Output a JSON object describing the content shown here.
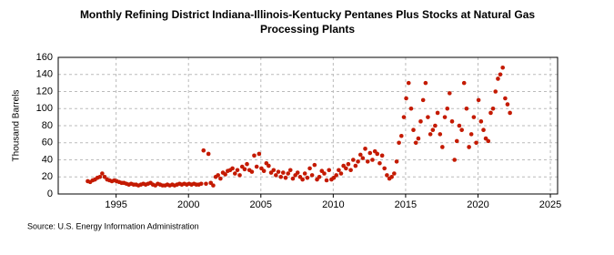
{
  "chart_data": {
    "type": "scatter",
    "title": [
      "Monthly Refining District Indiana-Illinois-Kentucky Pentanes Plus Stocks at Natural Gas",
      "Processing Plants"
    ],
    "y_label": "Thousand Barrels",
    "source": "Source: U.S. Energy Information Administration",
    "xlim": [
      1991,
      2025.5
    ],
    "xticks": [
      1995,
      2000,
      2005,
      2010,
      2015,
      2020,
      2025
    ],
    "ylim": [
      0,
      160
    ],
    "yticks": [
      0,
      20,
      40,
      60,
      80,
      100,
      120,
      140,
      160
    ],
    "grid": true,
    "series": [
      {
        "color": "#c41a00",
        "x": [
          1993.04,
          1993.21,
          1993.38,
          1993.54,
          1993.71,
          1993.88,
          1994.04,
          1994.21,
          1994.38,
          1994.54,
          1994.71,
          1994.88,
          1995.04,
          1995.21,
          1995.38,
          1995.54,
          1995.71,
          1995.88,
          1996.04,
          1996.21,
          1996.38,
          1996.54,
          1996.71,
          1996.88,
          1997.04,
          1997.21,
          1997.38,
          1997.54,
          1997.71,
          1997.88,
          1998.04,
          1998.21,
          1998.38,
          1998.54,
          1998.71,
          1998.88,
          1999.04,
          1999.21,
          1999.38,
          1999.54,
          1999.71,
          1999.88,
          2000.04,
          2000.21,
          2000.38,
          2000.54,
          2000.71,
          2000.88,
          2001.04,
          2001.21,
          2001.38,
          2001.54,
          2001.71,
          2001.88,
          2002.04,
          2002.21,
          2002.38,
          2002.54,
          2002.71,
          2002.88,
          2003.04,
          2003.21,
          2003.38,
          2003.54,
          2003.71,
          2003.88,
          2004.04,
          2004.21,
          2004.38,
          2004.54,
          2004.71,
          2004.88,
          2005.04,
          2005.21,
          2005.38,
          2005.54,
          2005.71,
          2005.88,
          2006.04,
          2006.21,
          2006.38,
          2006.54,
          2006.71,
          2006.88,
          2007.04,
          2007.21,
          2007.38,
          2007.54,
          2007.71,
          2007.88,
          2008.04,
          2008.21,
          2008.38,
          2008.54,
          2008.71,
          2008.88,
          2009.04,
          2009.21,
          2009.38,
          2009.54,
          2009.71,
          2009.88,
          2010.04,
          2010.21,
          2010.38,
          2010.54,
          2010.71,
          2010.88,
          2011.04,
          2011.21,
          2011.38,
          2011.54,
          2011.71,
          2011.88,
          2012.04,
          2012.21,
          2012.38,
          2012.54,
          2012.71,
          2012.88,
          2013.04,
          2013.21,
          2013.38,
          2013.54,
          2013.71,
          2013.88,
          2014.04,
          2014.21,
          2014.38,
          2014.54,
          2014.71,
          2014.88,
          2015.04,
          2015.21,
          2015.38,
          2015.54,
          2015.71,
          2015.88,
          2016.04,
          2016.21,
          2016.38,
          2016.54,
          2016.71,
          2016.88,
          2017.04,
          2017.21,
          2017.38,
          2017.54,
          2017.71,
          2017.88,
          2018.04,
          2018.21,
          2018.38,
          2018.54,
          2018.71,
          2018.88,
          2019.04,
          2019.21,
          2019.38,
          2019.54,
          2019.71,
          2019.88,
          2020.04,
          2020.21,
          2020.38,
          2020.54,
          2020.71,
          2020.88,
          2021.04,
          2021.21,
          2021.38,
          2021.54,
          2021.71,
          2021.88,
          2022.04,
          2022.21
        ],
        "values": [
          15,
          14,
          16,
          17,
          19,
          20,
          24,
          20,
          17,
          16,
          15,
          16,
          15,
          14,
          13,
          13,
          12,
          11,
          12,
          11,
          11,
          10,
          11,
          12,
          11,
          12,
          13,
          11,
          10,
          12,
          11,
          10,
          10,
          11,
          10,
          11,
          10,
          11,
          12,
          11,
          12,
          11,
          12,
          11,
          12,
          11,
          11,
          12,
          51,
          12,
          47,
          13,
          10,
          20,
          22,
          18,
          25,
          23,
          27,
          28,
          30,
          24,
          28,
          22,
          32,
          29,
          35,
          28,
          26,
          45,
          32,
          47,
          30,
          27,
          36,
          33,
          25,
          28,
          22,
          26,
          20,
          25,
          19,
          24,
          28,
          18,
          22,
          25,
          20,
          17,
          24,
          19,
          30,
          22,
          34,
          17,
          20,
          27,
          24,
          16,
          28,
          17,
          19,
          22,
          28,
          24,
          33,
          30,
          35,
          28,
          40,
          33,
          38,
          46,
          42,
          53,
          38,
          48,
          40,
          50,
          47,
          36,
          45,
          30,
          22,
          18,
          20,
          24,
          38,
          60,
          68,
          90,
          112,
          130,
          100,
          75,
          60,
          65,
          85,
          110,
          130,
          90,
          70,
          75,
          80,
          95,
          70,
          55,
          90,
          100,
          118,
          85,
          40,
          62,
          80,
          75,
          130,
          100,
          55,
          70,
          90,
          60,
          110,
          85,
          75,
          65,
          62,
          95,
          100,
          120,
          135,
          140,
          148,
          112,
          105,
          95
        ]
      }
    ]
  }
}
